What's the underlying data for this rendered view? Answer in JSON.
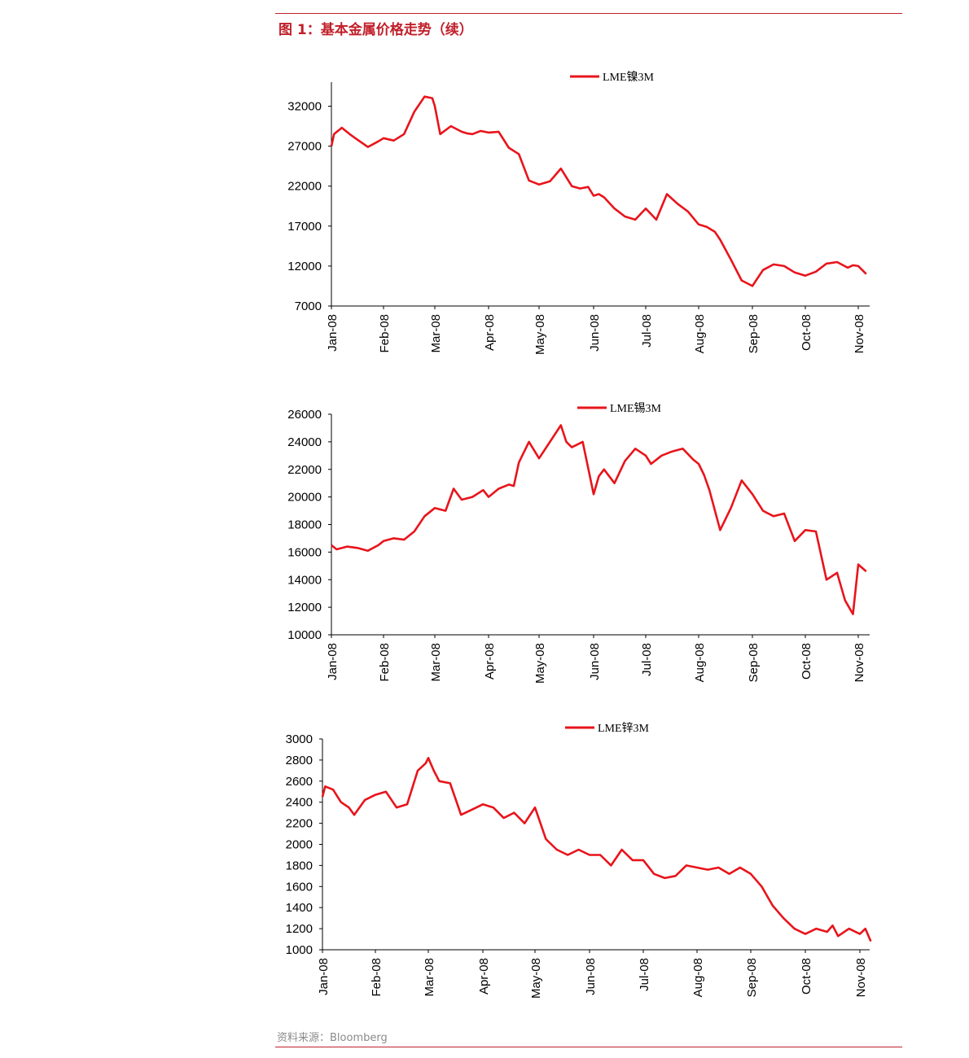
{
  "figure": {
    "title": "图 1：基本金属价格走势（续）",
    "source": "资料来源：Bloomberg"
  },
  "colors": {
    "line": "#e8141b",
    "rule": "#c0202a"
  },
  "chart_data": [
    {
      "type": "line",
      "series": [
        {
          "name": "LME镍3M"
        }
      ],
      "categories": [
        "Jan-08",
        "Feb-08",
        "Mar-08",
        "Apr-08",
        "May-08",
        "Jun-08",
        "Jul-08",
        "Aug-08",
        "Sep-08",
        "Oct-08",
        "Nov-08"
      ],
      "y_ticks": [
        "7000",
        "12000",
        "17000",
        "22000",
        "27000",
        "32000"
      ],
      "ylim": [
        7000,
        35000
      ],
      "x": [
        0,
        0.05,
        0.2,
        0.35,
        0.5,
        0.7,
        0.9,
        1.0,
        1.2,
        1.4,
        1.6,
        1.8,
        1.95,
        2.0,
        2.1,
        2.3,
        2.5,
        2.6,
        2.7,
        2.85,
        3.0,
        3.2,
        3.4,
        3.6,
        3.8,
        4.0,
        4.2,
        4.4,
        4.6,
        4.75,
        4.9,
        5.0,
        5.1,
        5.2,
        5.4,
        5.6,
        5.8,
        6.0,
        6.2,
        6.4,
        6.6,
        6.8,
        7.0,
        7.15,
        7.3,
        7.4,
        7.6,
        7.8,
        8.0,
        8.2,
        8.4,
        8.6,
        8.8,
        9.0,
        9.2,
        9.4,
        9.6,
        9.8,
        9.9,
        10.0,
        10.15
      ],
      "values": [
        27000,
        28500,
        29300,
        28500,
        27800,
        26900,
        27600,
        28000,
        27700,
        28500,
        31300,
        33200,
        33000,
        32000,
        28500,
        29500,
        28800,
        28600,
        28500,
        28900,
        28700,
        28800,
        26800,
        26000,
        22700,
        22200,
        22600,
        24200,
        22000,
        21700,
        21900,
        20800,
        21000,
        20600,
        19200,
        18200,
        17800,
        19200,
        17800,
        21000,
        19800,
        18800,
        17200,
        16900,
        16300,
        15300,
        12800,
        10200,
        9500,
        11500,
        12200,
        12000,
        11200,
        10800,
        11300,
        12300,
        12500,
        11800,
        12100,
        12000,
        11000
      ]
    },
    {
      "type": "line",
      "series": [
        {
          "name": "LME锡3M"
        }
      ],
      "categories": [
        "Jan-08",
        "Feb-08",
        "Mar-08",
        "Apr-08",
        "May-08",
        "Jun-08",
        "Jul-08",
        "Aug-08",
        "Sep-08",
        "Oct-08",
        "Nov-08"
      ],
      "y_ticks": [
        "10000",
        "12000",
        "14000",
        "16000",
        "18000",
        "20000",
        "22000",
        "24000",
        "26000"
      ],
      "ylim": [
        10000,
        26000
      ],
      "x": [
        0,
        0.1,
        0.3,
        0.5,
        0.7,
        0.9,
        1.0,
        1.2,
        1.4,
        1.6,
        1.8,
        2.0,
        2.2,
        2.35,
        2.5,
        2.7,
        2.9,
        3.0,
        3.2,
        3.4,
        3.5,
        3.6,
        3.8,
        4.0,
        4.2,
        4.4,
        4.5,
        4.6,
        4.8,
        5.0,
        5.1,
        5.2,
        5.4,
        5.6,
        5.8,
        6.0,
        6.1,
        6.3,
        6.5,
        6.7,
        6.9,
        7.0,
        7.1,
        7.2,
        7.4,
        7.6,
        7.8,
        8.0,
        8.2,
        8.4,
        8.6,
        8.8,
        9.0,
        9.2,
        9.4,
        9.6,
        9.75,
        9.9,
        10.0,
        10.15
      ],
      "values": [
        16500,
        16200,
        16400,
        16300,
        16100,
        16500,
        16800,
        17000,
        16900,
        17500,
        18600,
        19200,
        19000,
        20600,
        19800,
        20000,
        20500,
        20000,
        20600,
        20900,
        20800,
        22500,
        24000,
        22800,
        24000,
        25200,
        24000,
        23600,
        24000,
        20200,
        21500,
        22000,
        21000,
        22600,
        23500,
        23000,
        22400,
        23000,
        23300,
        23500,
        22700,
        22400,
        21600,
        20500,
        17600,
        19200,
        21200,
        20200,
        19000,
        18600,
        18800,
        16800,
        17600,
        17500,
        14000,
        14500,
        12500,
        11500,
        15100,
        14600
      ]
    },
    {
      "type": "line",
      "series": [
        {
          "name": "LME锌3M"
        }
      ],
      "categories": [
        "Jan-08",
        "Feb-08",
        "Mar-08",
        "Apr-08",
        "May-08",
        "Jun-08",
        "Jul-08",
        "Aug-08",
        "Sep-08",
        "Oct-08",
        "Nov-08"
      ],
      "y_ticks": [
        "1000",
        "1200",
        "1400",
        "1600",
        "1800",
        "2000",
        "2200",
        "2400",
        "2600",
        "2800",
        "3000"
      ],
      "ylim": [
        1000,
        3000
      ],
      "x": [
        0,
        0.05,
        0.2,
        0.35,
        0.5,
        0.6,
        0.8,
        1.0,
        1.2,
        1.4,
        1.6,
        1.8,
        1.95,
        2.0,
        2.1,
        2.2,
        2.4,
        2.6,
        2.8,
        3.0,
        3.2,
        3.4,
        3.6,
        3.8,
        4.0,
        4.2,
        4.4,
        4.6,
        4.8,
        5.0,
        5.2,
        5.4,
        5.6,
        5.8,
        6.0,
        6.2,
        6.4,
        6.6,
        6.8,
        7.0,
        7.2,
        7.4,
        7.6,
        7.8,
        8.0,
        8.2,
        8.4,
        8.6,
        8.8,
        9.0,
        9.2,
        9.4,
        9.5,
        9.6,
        9.8,
        10.0,
        10.1,
        10.2
      ],
      "values": [
        2450,
        2550,
        2520,
        2400,
        2350,
        2280,
        2420,
        2470,
        2500,
        2350,
        2380,
        2700,
        2770,
        2820,
        2700,
        2600,
        2580,
        2280,
        2330,
        2380,
        2350,
        2250,
        2300,
        2200,
        2350,
        2050,
        1950,
        1900,
        1950,
        1900,
        1900,
        1800,
        1950,
        1850,
        1850,
        1720,
        1680,
        1700,
        1800,
        1780,
        1760,
        1780,
        1720,
        1780,
        1720,
        1600,
        1420,
        1300,
        1200,
        1150,
        1200,
        1170,
        1230,
        1130,
        1200,
        1150,
        1200,
        1080
      ]
    }
  ]
}
